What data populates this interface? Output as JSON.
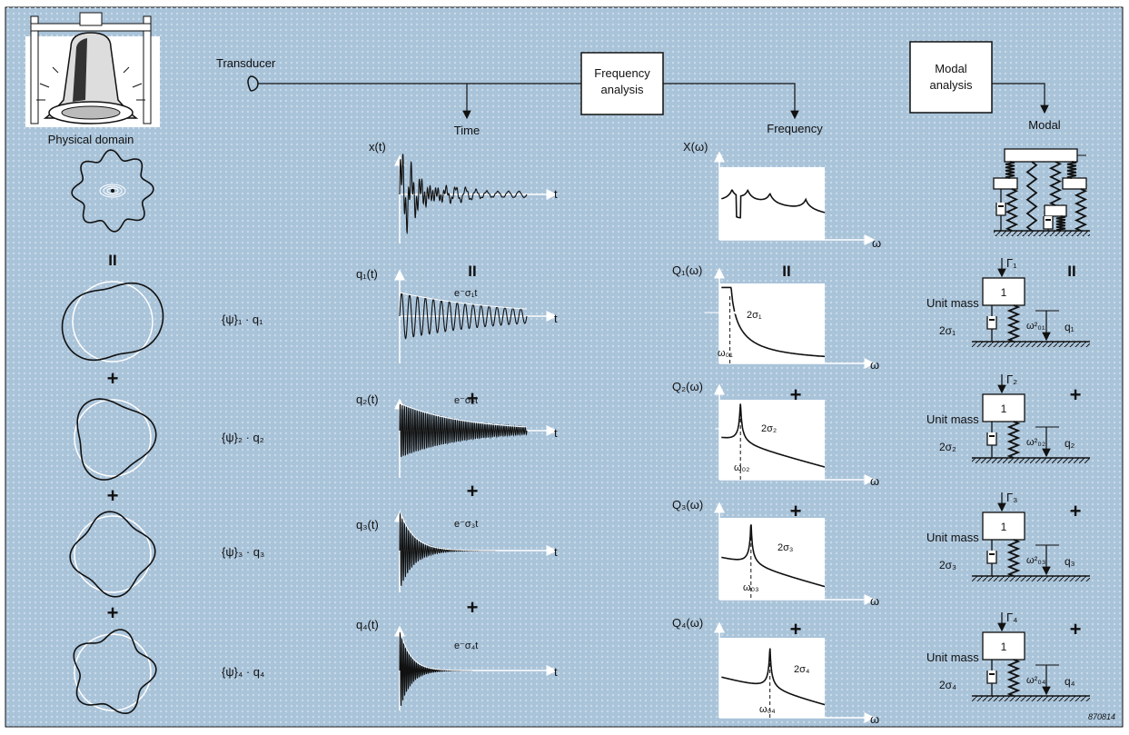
{
  "colors": {
    "background": "#a9c3d9",
    "line": "#111111",
    "white": "#ffffff",
    "grid_dot": "#c9dbe9"
  },
  "header": {
    "transducer": "Transducer",
    "freq_box": [
      "Frequency",
      "analysis"
    ],
    "modal_box": [
      "Modal",
      "analysis"
    ],
    "physical_domain": "Physical domain",
    "time": "Time",
    "frequency": "Frequency",
    "modal": "Modal"
  },
  "operators": {
    "equals": "II",
    "plus": "+"
  },
  "time_top": {
    "ylabel": "x(t)",
    "xlabel": "t"
  },
  "freq_top": {
    "ylabel": "X(ω)",
    "xlabel": "ω"
  },
  "unit_mass_number": "1",
  "modes": [
    {
      "psi": "{ψ}₁ · q₁",
      "time_ylabel": "q₁(t)",
      "decay": "e⁻σ₁t",
      "t": "t",
      "freq_ylabel": "Q₁(ω)",
      "damp": "2σ₁",
      "omega0": "ω₀₁",
      "w": "ω",
      "gamma": "Γ₁",
      "unit_mass": "Unit mass",
      "damper": "2σ₁",
      "spring": "ω²₀₁",
      "q": "q₁"
    },
    {
      "psi": "{ψ}₂ · q₂",
      "time_ylabel": "q₂(t)",
      "decay": "e⁻σ₂t",
      "t": "t",
      "freq_ylabel": "Q₂(ω)",
      "damp": "2σ₂",
      "omega0": "ω₀₂",
      "w": "ω",
      "gamma": "Γ₂",
      "unit_mass": "Unit mass",
      "damper": "2σ₂",
      "spring": "ω²₀₂",
      "q": "q₂"
    },
    {
      "psi": "{ψ}₃ · q₃",
      "time_ylabel": "q₃(t)",
      "decay": "e⁻σ₃t",
      "t": "t",
      "freq_ylabel": "Q₃(ω)",
      "damp": "2σ₃",
      "omega0": "ω₀₃",
      "w": "ω",
      "gamma": "Γ₃",
      "unit_mass": "Unit mass",
      "damper": "2σ₃",
      "spring": "ω²₀₃",
      "q": "q₃"
    },
    {
      "psi": "{ψ}₄ · q₄",
      "time_ylabel": "q₄(t)",
      "decay": "e⁻σ₄t",
      "t": "t",
      "freq_ylabel": "Q₄(ω)",
      "damp": "2σ₄",
      "omega0": "ω₀₄",
      "w": "ω",
      "gamma": "Γ₄",
      "unit_mass": "Unit mass",
      "damper": "2σ₄",
      "spring": "ω²₀₄",
      "q": "q₄"
    }
  ],
  "figure_id": "870814"
}
